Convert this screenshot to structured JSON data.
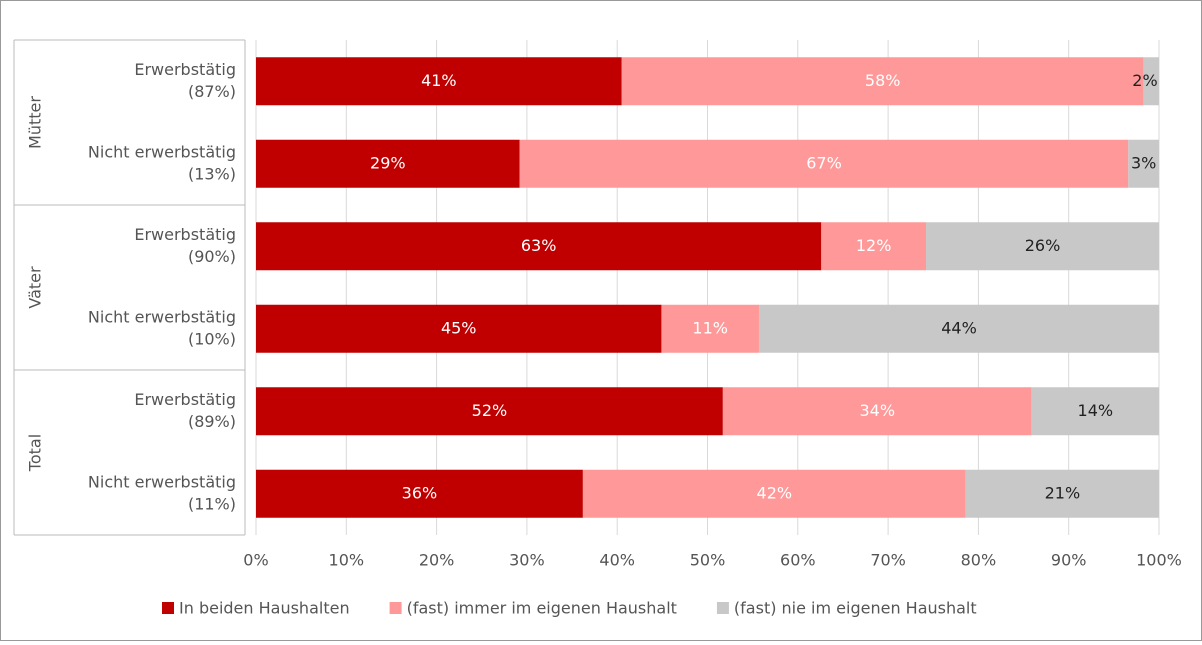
{
  "chart_data": {
    "type": "stacked-bar-horizontal",
    "groups": [
      {
        "name": "Mütter",
        "categories": [
          [
            "Erwerbstätig",
            "(87%)"
          ],
          [
            "Nicht erwerbstätig",
            "(13%)"
          ]
        ]
      },
      {
        "name": "Väter",
        "categories": [
          [
            "Erwerbstätig",
            "(90%)"
          ],
          [
            "Nicht erwerbstätig",
            "(10%)"
          ]
        ]
      },
      {
        "name": "Total",
        "categories": [
          [
            "Erwerbstätig",
            "(89%)"
          ],
          [
            "Nicht erwerbstätig",
            "(11%)"
          ]
        ]
      }
    ],
    "series": [
      {
        "name": "In beiden Haushalten",
        "color": "#c00000",
        "label_color": "#ffffff",
        "values": [
          40.5,
          29.2,
          62.6,
          44.9,
          51.7,
          36.2
        ],
        "value_labels": [
          "41%",
          "29%",
          "63%",
          "45%",
          "52%",
          "36%"
        ]
      },
      {
        "name": "(fast) immer im eigenen Haushalt",
        "color": "#ff9999",
        "label_color": "#ffffff",
        "values": [
          57.8,
          67.4,
          11.6,
          10.8,
          34.2,
          42.4
        ],
        "value_labels": [
          "58%",
          "67%",
          "12%",
          "11%",
          "34%",
          "42%"
        ]
      },
      {
        "name": "(fast) nie im eigenen Haushalt",
        "color": "#c8c8c8",
        "label_color": "#222222",
        "values": [
          1.7,
          3.4,
          25.8,
          44.3,
          14.1,
          21.4
        ],
        "value_labels": [
          "2%",
          "3%",
          "26%",
          "44%",
          "14%",
          "21%"
        ]
      }
    ],
    "xlim": [
      0,
      100
    ],
    "xticks": [
      {
        "value": 0,
        "label": "0%"
      },
      {
        "value": 10,
        "label": "10%"
      },
      {
        "value": 20,
        "label": "20%"
      },
      {
        "value": 30,
        "label": "30%"
      },
      {
        "value": 40,
        "label": "40%"
      },
      {
        "value": 50,
        "label": "50%"
      },
      {
        "value": 60,
        "label": "60%"
      },
      {
        "value": 70,
        "label": "70%"
      },
      {
        "value": 80,
        "label": "80%"
      },
      {
        "value": 90,
        "label": "90%"
      },
      {
        "value": 100,
        "label": "100%"
      }
    ],
    "grid": true,
    "legend": "bottom"
  }
}
